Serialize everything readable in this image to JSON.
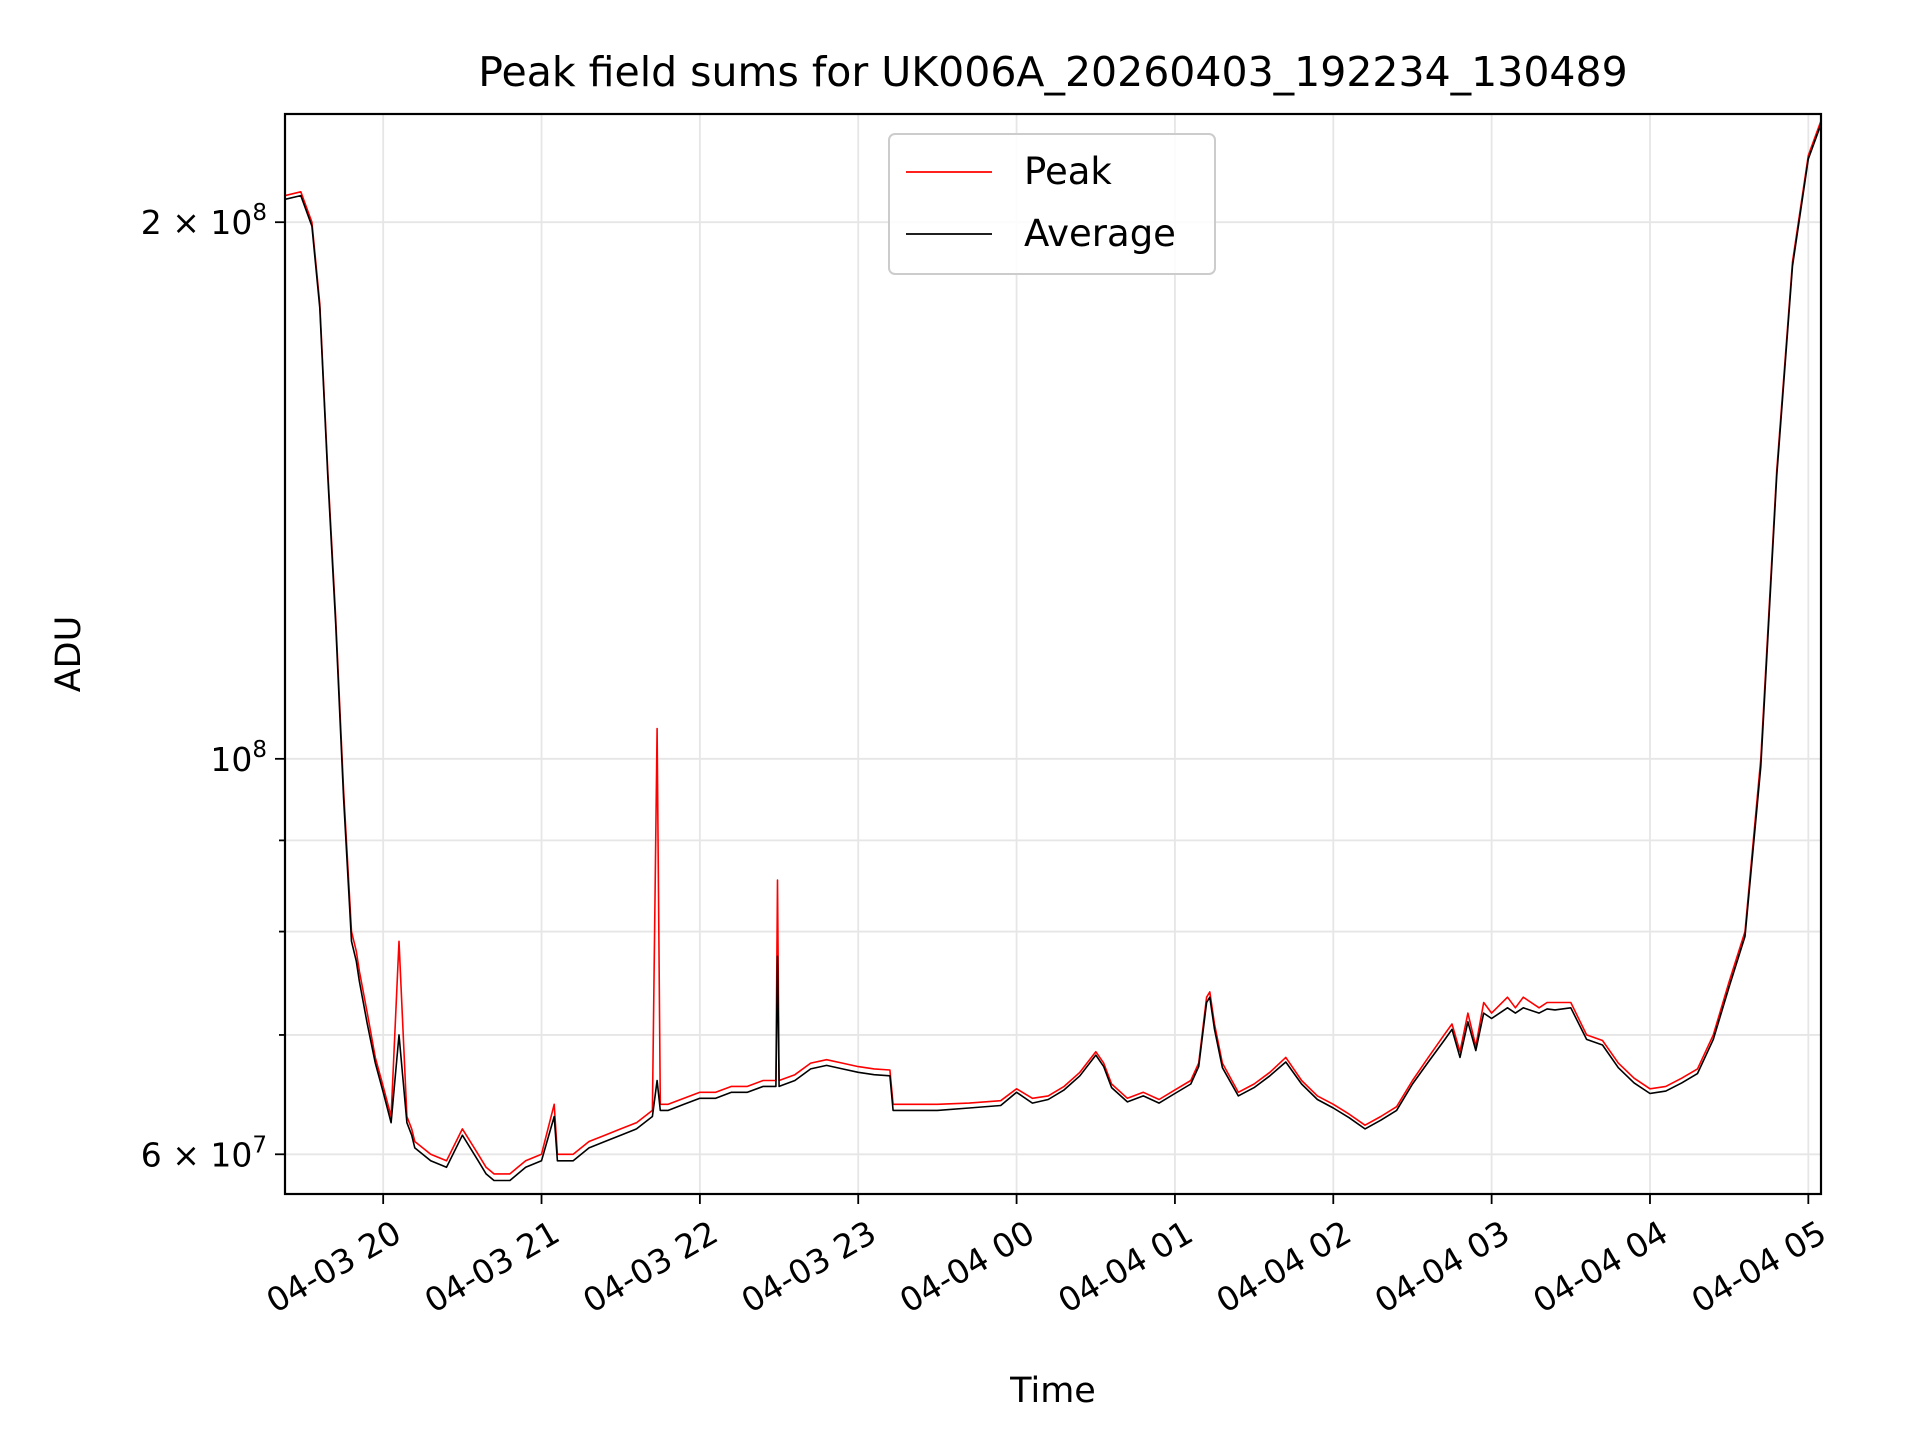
{
  "chart_data": {
    "type": "line",
    "title": "Peak field sums for UK006A_20260403_192234_130489",
    "xlabel": "Time",
    "ylabel": "ADU",
    "yscale": "log",
    "ylim": [
      57000000,
      230000000
    ],
    "xlim_hours": [
      19.38,
      29.08
    ],
    "x_unit": "hours since 2026-04-03 00:00",
    "x_ticks": [
      {
        "value": 20,
        "label": "04-03 20"
      },
      {
        "value": 21,
        "label": "04-03 21"
      },
      {
        "value": 22,
        "label": "04-03 22"
      },
      {
        "value": 23,
        "label": "04-03 23"
      },
      {
        "value": 24,
        "label": "04-04 00"
      },
      {
        "value": 25,
        "label": "04-04 01"
      },
      {
        "value": 26,
        "label": "04-04 02"
      },
      {
        "value": 27,
        "label": "04-04 03"
      },
      {
        "value": 28,
        "label": "04-04 04"
      },
      {
        "value": 29,
        "label": "04-04 05"
      }
    ],
    "y_major_ticks": [
      {
        "value": 60000000,
        "mantissa": "6",
        "exponent": "7"
      },
      {
        "value": 100000000,
        "mantissa": "",
        "exponent": "8"
      },
      {
        "value": 200000000,
        "mantissa": "2",
        "exponent": "8"
      }
    ],
    "y_minor_ticks": [
      70000000,
      80000000,
      90000000
    ],
    "grid": true,
    "legend_position": "top-center",
    "series": [
      {
        "name": "Peak",
        "color": "#ff0000",
        "x": [
          19.38,
          19.48,
          19.55,
          19.6,
          19.65,
          19.7,
          19.75,
          19.8,
          19.83,
          19.85,
          19.9,
          19.95,
          20.0,
          20.05,
          20.1,
          20.15,
          20.18,
          20.2,
          20.3,
          20.4,
          20.5,
          20.6,
          20.65,
          20.7,
          20.8,
          20.85,
          20.9,
          21.0,
          21.08,
          21.1,
          21.2,
          21.3,
          21.4,
          21.5,
          21.6,
          21.7,
          21.73,
          21.75,
          21.8,
          21.9,
          22.0,
          22.1,
          22.2,
          22.3,
          22.4,
          22.48,
          22.49,
          22.5,
          22.6,
          22.7,
          22.8,
          22.9,
          23.0,
          23.1,
          23.2,
          23.22,
          23.3,
          23.5,
          23.7,
          23.9,
          24.0,
          24.1,
          24.2,
          24.3,
          24.4,
          24.5,
          24.55,
          24.6,
          24.7,
          24.8,
          24.9,
          25.0,
          25.1,
          25.15,
          25.2,
          25.22,
          25.25,
          25.3,
          25.4,
          25.5,
          25.6,
          25.7,
          25.8,
          25.9,
          26.0,
          26.1,
          26.2,
          26.3,
          26.4,
          26.5,
          26.6,
          26.7,
          26.75,
          26.8,
          26.85,
          26.9,
          26.95,
          27.0,
          27.1,
          27.15,
          27.2,
          27.3,
          27.35,
          27.4,
          27.5,
          27.6,
          27.7,
          27.8,
          27.9,
          28.0,
          28.1,
          28.2,
          28.3,
          28.4,
          28.5,
          28.6,
          28.7,
          28.8,
          28.9,
          29.0,
          29.08
        ],
        "y": [
          207000000,
          208000000,
          200000000,
          180000000,
          145000000,
          120000000,
          96000000,
          80000000,
          78000000,
          76000000,
          72000000,
          68000000,
          65500000,
          63000000,
          79000000,
          63000000,
          62000000,
          61000000,
          60000000,
          59500000,
          62000000,
          60000000,
          59000000,
          58500000,
          58500000,
          59000000,
          59500000,
          60000000,
          64000000,
          60000000,
          60000000,
          61000000,
          61500000,
          62000000,
          62500000,
          63500000,
          104000000,
          64000000,
          64000000,
          64500000,
          65000000,
          65000000,
          65500000,
          65500000,
          66000000,
          66000000,
          85500000,
          66000000,
          66500000,
          67500000,
          67800000,
          67500000,
          67200000,
          67000000,
          66900000,
          64000000,
          64000000,
          64000000,
          64100000,
          64300000,
          65300000,
          64500000,
          64700000,
          65500000,
          66700000,
          68500000,
          67500000,
          65700000,
          64500000,
          65000000,
          64400000,
          65200000,
          66000000,
          67500000,
          73500000,
          74000000,
          71000000,
          67500000,
          65000000,
          65700000,
          66700000,
          68000000,
          66000000,
          64700000,
          64000000,
          63200000,
          62300000,
          63000000,
          63800000,
          66000000,
          68000000,
          70000000,
          71000000,
          68500000,
          72000000,
          69000000,
          73000000,
          72000000,
          73500000,
          72500000,
          73500000,
          72500000,
          73000000,
          73000000,
          73000000,
          70000000,
          69500000,
          67500000,
          66200000,
          65300000,
          65500000,
          66200000,
          67000000,
          70000000,
          75000000,
          80000000,
          100000000,
          145000000,
          190000000,
          218000000,
          228000000
        ]
      },
      {
        "name": "Average",
        "color": "#000000",
        "x": [
          19.38,
          19.48,
          19.55,
          19.6,
          19.65,
          19.7,
          19.75,
          19.8,
          19.83,
          19.85,
          19.9,
          19.95,
          20.0,
          20.05,
          20.1,
          20.15,
          20.18,
          20.2,
          20.3,
          20.4,
          20.5,
          20.6,
          20.65,
          20.7,
          20.8,
          20.85,
          20.9,
          21.0,
          21.08,
          21.1,
          21.2,
          21.3,
          21.4,
          21.5,
          21.6,
          21.7,
          21.73,
          21.75,
          21.8,
          21.9,
          22.0,
          22.1,
          22.2,
          22.3,
          22.4,
          22.48,
          22.49,
          22.5,
          22.6,
          22.7,
          22.8,
          22.9,
          23.0,
          23.1,
          23.2,
          23.22,
          23.3,
          23.5,
          23.7,
          23.9,
          24.0,
          24.1,
          24.2,
          24.3,
          24.4,
          24.5,
          24.55,
          24.6,
          24.7,
          24.8,
          24.9,
          25.0,
          25.1,
          25.15,
          25.2,
          25.22,
          25.25,
          25.3,
          25.4,
          25.5,
          25.6,
          25.7,
          25.8,
          25.9,
          26.0,
          26.1,
          26.2,
          26.3,
          26.4,
          26.5,
          26.6,
          26.7,
          26.75,
          26.8,
          26.85,
          26.9,
          26.95,
          27.0,
          27.1,
          27.15,
          27.2,
          27.3,
          27.35,
          27.4,
          27.5,
          27.6,
          27.7,
          27.8,
          27.9,
          28.0,
          28.1,
          28.2,
          28.3,
          28.4,
          28.5,
          28.6,
          28.7,
          28.8,
          28.9,
          29.0,
          29.08
        ],
        "y": [
          206000000,
          207000000,
          199000000,
          179000000,
          144000000,
          119000000,
          95000000,
          79000000,
          77000000,
          75000000,
          71000000,
          67500000,
          65000000,
          62500000,
          70000000,
          62500000,
          61500000,
          60500000,
          59500000,
          59000000,
          61500000,
          59500000,
          58500000,
          58000000,
          58000000,
          58500000,
          59000000,
          59500000,
          63000000,
          59500000,
          59500000,
          60500000,
          61000000,
          61500000,
          62000000,
          63000000,
          66000000,
          63500000,
          63500000,
          64000000,
          64500000,
          64500000,
          65000000,
          65000000,
          65500000,
          65500000,
          77500000,
          65500000,
          66000000,
          67000000,
          67300000,
          67000000,
          66700000,
          66500000,
          66400000,
          63500000,
          63500000,
          63500000,
          63700000,
          63900000,
          65000000,
          64100000,
          64400000,
          65200000,
          66400000,
          68200000,
          67200000,
          65400000,
          64200000,
          64700000,
          64100000,
          64900000,
          65700000,
          67200000,
          73000000,
          73500000,
          70500000,
          67100000,
          64700000,
          65400000,
          66400000,
          67600000,
          65700000,
          64400000,
          63700000,
          62900000,
          62000000,
          62700000,
          63500000,
          65700000,
          67600000,
          69500000,
          70500000,
          68000000,
          71200000,
          68600000,
          72000000,
          71500000,
          72500000,
          72000000,
          72500000,
          72000000,
          72400000,
          72300000,
          72500000,
          69600000,
          69100000,
          67100000,
          65800000,
          64900000,
          65100000,
          65800000,
          66600000,
          69600000,
          74500000,
          79500000,
          99000000,
          144000000,
          189000000,
          217000000,
          227000000
        ]
      }
    ]
  }
}
